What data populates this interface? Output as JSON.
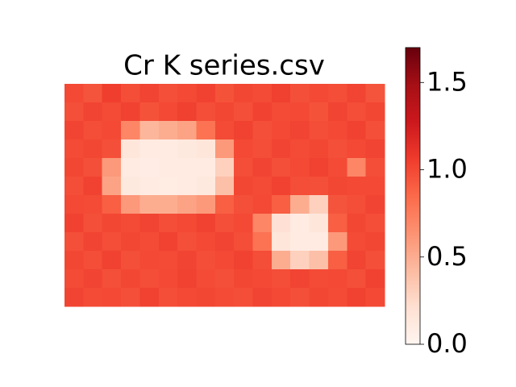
{
  "chart_data": {
    "type": "heatmap",
    "title": "Cr K series.csv",
    "cmap": "Reds",
    "colors": [
      "#fff5f0",
      "#fee0d2",
      "#fcbba1",
      "#fc9272",
      "#fb6a4a",
      "#ef3b2c",
      "#cb181d",
      "#a50f15",
      "#67000d"
    ],
    "clim": [
      0,
      1.7
    ],
    "cticks": [
      {
        "value": 0,
        "label": "0.0"
      },
      {
        "value": 0.5,
        "label": "0.5"
      },
      {
        "value": 1,
        "label": "1.0"
      },
      {
        "value": 1.5,
        "label": "1.5"
      }
    ],
    "z": [
      [
        1.0,
        0.95,
        1.05,
        0.98,
        1.02,
        0.97,
        1.0,
        1.03,
        0.96,
        1.01,
        0.99,
        1.04,
        0.97,
        1.0,
        0.98,
        1.02,
        0.95
      ],
      [
        0.97,
        1.02,
        0.99,
        1.03,
        0.96,
        1.0,
        1.04,
        0.98,
        1.01,
        0.97,
        1.03,
        0.99,
        1.0,
        0.96,
        1.02,
        0.98,
        1.01
      ],
      [
        1.02,
        0.98,
        1.0,
        0.7,
        0.45,
        0.5,
        0.55,
        0.8,
        0.99,
        1.03,
        0.97,
        1.0,
        1.02,
        0.98,
        1.0,
        1.03,
        0.97
      ],
      [
        0.99,
        1.01,
        0.97,
        0.15,
        0.1,
        0.1,
        0.12,
        0.15,
        0.6,
        1.0,
        0.98,
        1.02,
        0.99,
        1.01,
        0.97,
        1.0,
        1.02
      ],
      [
        1.01,
        0.97,
        0.6,
        0.1,
        0.08,
        0.1,
        0.1,
        0.1,
        0.3,
        0.98,
        1.02,
        0.97,
        1.0,
        1.03,
        0.99,
        0.7,
        0.98
      ],
      [
        0.98,
        1.03,
        0.55,
        0.12,
        0.1,
        0.09,
        0.1,
        0.12,
        0.4,
        1.01,
        0.99,
        1.03,
        0.98,
        0.97,
        1.01,
        1.0,
        1.0
      ],
      [
        1.0,
        0.99,
        0.9,
        0.6,
        0.5,
        0.5,
        0.55,
        0.6,
        0.9,
        0.97,
        1.0,
        0.9,
        0.5,
        0.3,
        0.95,
        0.98,
        1.02
      ],
      [
        1.03,
        0.97,
        1.01,
        0.99,
        1.02,
        0.98,
        1.0,
        1.03,
        0.97,
        1.0,
        0.7,
        0.2,
        0.1,
        0.15,
        0.9,
        1.01,
        0.98
      ],
      [
        0.97,
        1.02,
        0.98,
        1.01,
        0.99,
        1.03,
        0.97,
        1.0,
        1.02,
        0.98,
        0.8,
        0.15,
        0.1,
        0.1,
        0.6,
        0.99,
        1.01
      ],
      [
        1.01,
        0.98,
        1.03,
        0.97,
        1.0,
        0.99,
        1.02,
        0.98,
        1.0,
        1.03,
        0.98,
        0.5,
        0.3,
        0.4,
        0.9,
        1.02,
        0.97
      ],
      [
        0.99,
        1.02,
        0.97,
        1.01,
        0.98,
        1.0,
        1.03,
        0.99,
        0.97,
        1.01,
        1.0,
        0.98,
        1.02,
        0.99,
        1.0,
        0.97,
        1.03
      ],
      [
        1.02,
        0.99,
        1.0,
        0.97,
        1.03,
        0.98,
        1.0,
        1.01,
        0.99,
        0.98,
        1.02,
        1.0,
        0.97,
        1.01,
        0.99,
        1.03,
        1.0
      ]
    ]
  }
}
